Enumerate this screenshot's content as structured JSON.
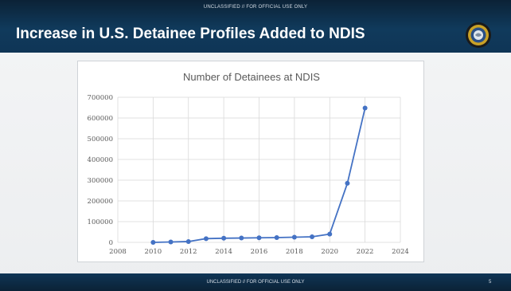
{
  "slide": {
    "classification_top": "UNCLASSIFIED // FOR OFFICIAL USE ONLY",
    "title": "Increase in U.S. Detainee Profiles Added to NDIS",
    "classification_bottom": "UNCLASSIFIED // FOR OFFICIAL USE ONLY",
    "page_number": "5"
  },
  "colors": {
    "series": "#4472c4",
    "header": "#103a5c"
  },
  "chart_data": {
    "type": "line",
    "title": "Number of Detainees at NDIS",
    "x": [
      2010,
      2011,
      2012,
      2013,
      2014,
      2015,
      2016,
      2017,
      2018,
      2019,
      2020,
      2021,
      2022
    ],
    "series": [
      {
        "values": [
          0,
          2000,
          4000,
          18000,
          20000,
          21000,
          22000,
          23000,
          25000,
          27000,
          40000,
          285000,
          648000
        ]
      }
    ],
    "xlim": [
      2008,
      2024
    ],
    "ylim": [
      0,
      700000
    ],
    "x_ticks": [
      "2008",
      "2010",
      "2012",
      "2014",
      "2016",
      "2018",
      "2020",
      "2022",
      "2024"
    ],
    "y_ticks": [
      "0",
      "100000",
      "200000",
      "300000",
      "400000",
      "500000",
      "600000",
      "700000"
    ],
    "grid": true,
    "markers": true
  }
}
